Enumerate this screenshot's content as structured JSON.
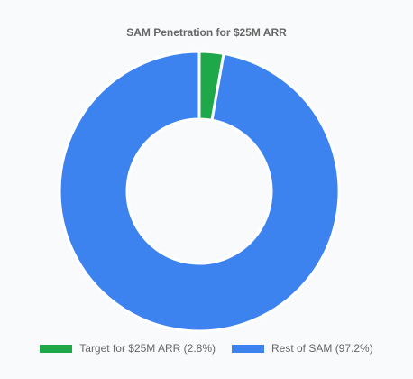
{
  "chart_data": {
    "type": "pie",
    "variant": "donut",
    "title": "SAM Penetration for $25M ARR",
    "categories": [
      "Target for $25M ARR (2.8%)",
      "Rest of SAM (97.2%)"
    ],
    "values": [
      2.8,
      97.2
    ],
    "colors": [
      "#1ea84a",
      "#3d83f0"
    ],
    "legend_position": "bottom"
  }
}
